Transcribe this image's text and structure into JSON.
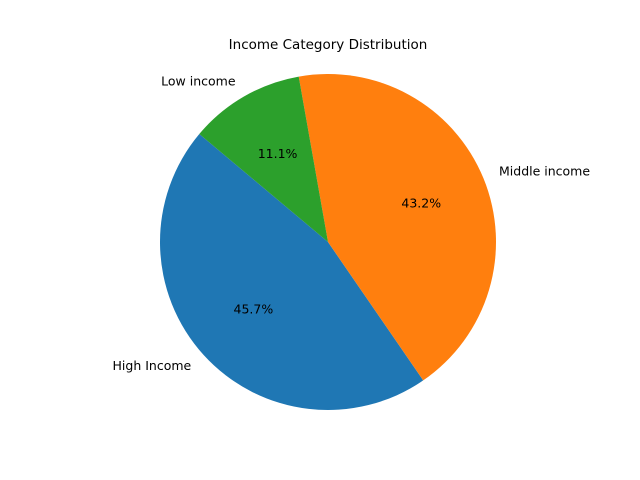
{
  "chart_data": {
    "type": "pie",
    "title": "Income Category Distribution",
    "start_angle_deg": 140,
    "direction": "counterclockwise",
    "slices": [
      {
        "label": "High Income",
        "value": 45.7,
        "pct_label": "45.7%",
        "color": "#1f77b4"
      },
      {
        "label": "Middle income",
        "value": 43.2,
        "pct_label": "43.2%",
        "color": "#ff7f0e"
      },
      {
        "label": "Low income",
        "value": 11.1,
        "pct_label": "11.1%",
        "color": "#2ca02c"
      }
    ]
  }
}
